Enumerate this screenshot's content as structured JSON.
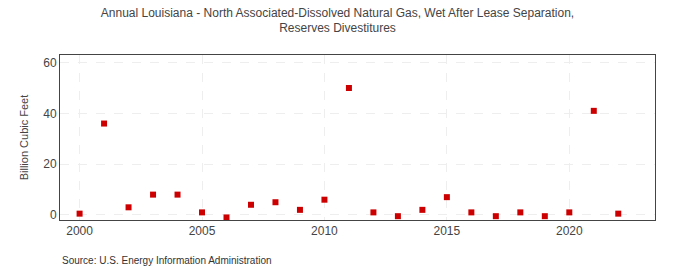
{
  "chart_data": {
    "type": "scatter",
    "title": "Annual Louisiana - North Associated-Dissolved Natural Gas, Wet After Lease Separation,\nReserves Divestitures",
    "ylabel": "Billion Cubic Feet",
    "annotations": [
      "Source: U.S. Energy Information Administration"
    ],
    "x": [
      2000,
      2001,
      2002,
      2003,
      2004,
      2005,
      2006,
      2007,
      2008,
      2009,
      2010,
      2011,
      2012,
      2013,
      2014,
      2015,
      2016,
      2017,
      2018,
      2019,
      2020,
      2021,
      2022
    ],
    "values": [
      0.5,
      36,
      3,
      8,
      8,
      1,
      -1,
      4,
      5,
      2,
      6,
      50,
      1,
      -0.5,
      2,
      7,
      1,
      -0.5,
      1,
      -0.5,
      1,
      41,
      0.5
    ],
    "color": "#cc0000",
    "marker": "square",
    "xlim": [
      1999.2,
      2023.5
    ],
    "xticks": [
      2000,
      2005,
      2010,
      2015,
      2020
    ],
    "ylim": [
      -2,
      63
    ],
    "yticks": [
      0,
      20,
      40,
      60
    ],
    "grid": true
  }
}
